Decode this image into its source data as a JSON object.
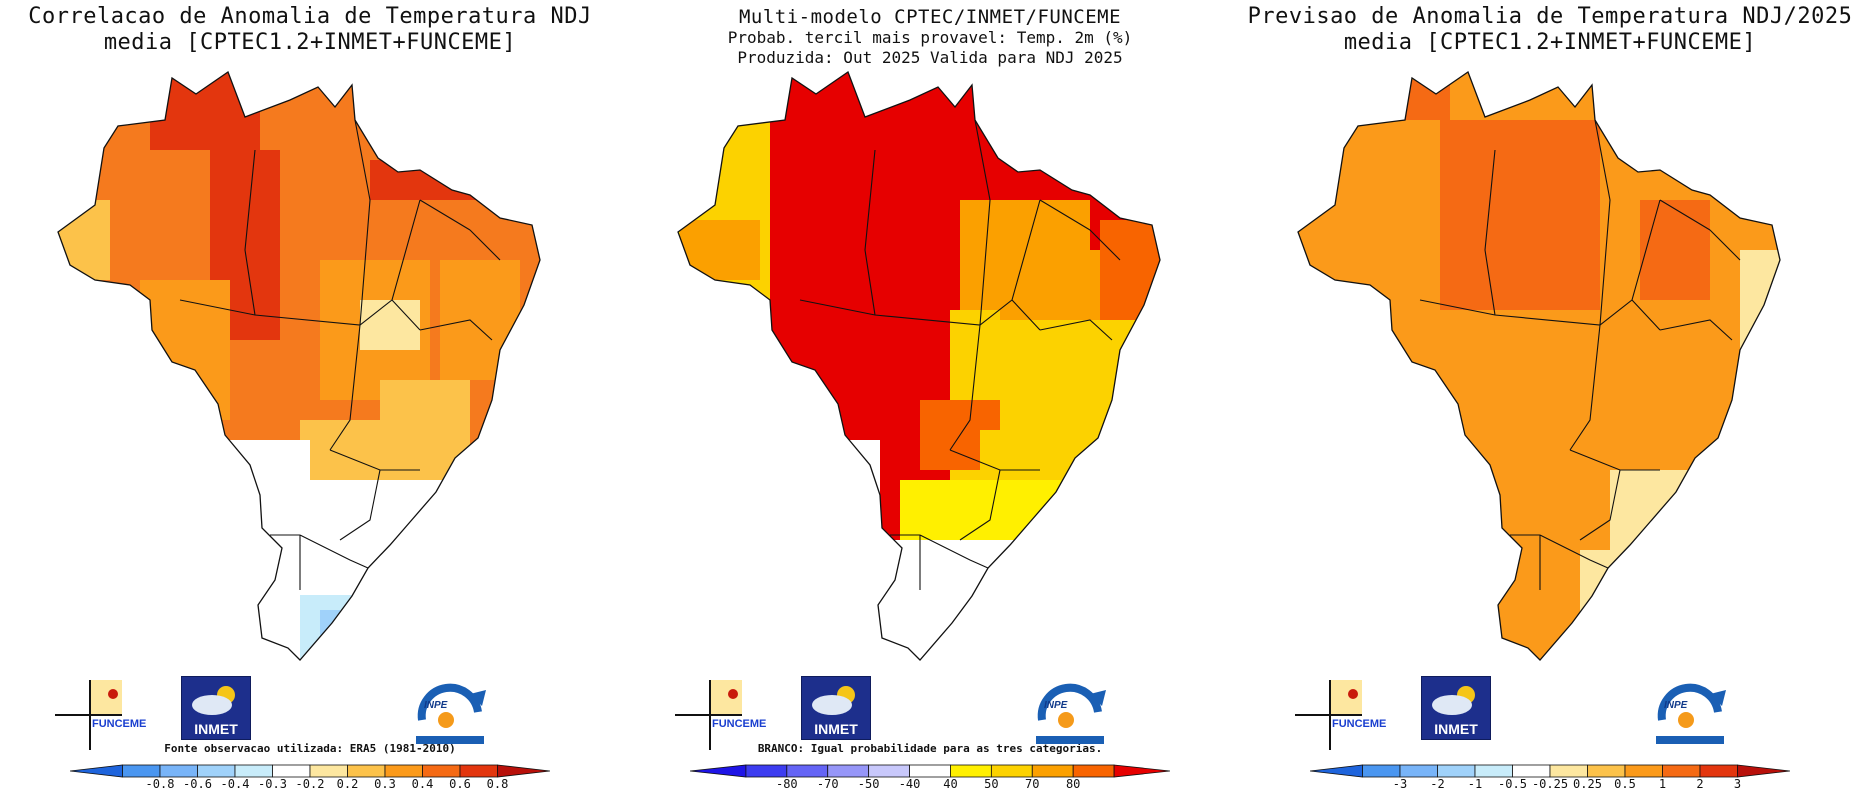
{
  "panels": [
    {
      "id": "correlation",
      "title_lines": [
        "Correlacao de Anomalia de Temperatura NDJ",
        "media [CPTEC1.2+INMET+FUNCEME]"
      ],
      "footnote": "Fonte observacao utilizada: ERA5 (1981-2010)",
      "colorbar": {
        "colors": [
          "#1e64dc",
          "#4a96f0",
          "#78b4f8",
          "#a0d2fa",
          "#c8ecfa",
          "#ffffff",
          "#fde7a0",
          "#fcc24a",
          "#fb9a1a",
          "#f56a14",
          "#e3360e",
          "#b8100a"
        ],
        "ticks": [
          "-0.8",
          "-0.6",
          "-0.4",
          "-0.3",
          "-0.2",
          "0.2",
          "0.3",
          "0.4",
          "0.6",
          "0.8"
        ]
      }
    },
    {
      "id": "probability",
      "title_lines": [
        "Multi-modelo CPTEC/INMET/FUNCEME",
        "Probab. tercil mais provavel: Temp. 2m (%)",
        "Produzida: Out 2025  Valida para NDJ 2025"
      ],
      "footnote": "BRANCO: Igual probabilidade para as tres categorias.",
      "colorbar": {
        "colors": [
          "#1e14e6",
          "#3c3cf0",
          "#6464f5",
          "#9696f8",
          "#c8c8fb",
          "#ffffff",
          "#fff000",
          "#fcd200",
          "#fba000",
          "#f86400",
          "#e60000"
        ],
        "ticks": [
          "-80",
          "-70",
          "-50",
          "-40",
          "40",
          "50",
          "70",
          "80"
        ]
      }
    },
    {
      "id": "forecast",
      "title_lines": [
        "Previsao de Anomalia de Temperatura NDJ/2025",
        "media [CPTEC1.2+INMET+FUNCEME]"
      ],
      "footnote": "",
      "colorbar": {
        "colors": [
          "#1e64dc",
          "#4a96f0",
          "#78b4f8",
          "#a0d2fa",
          "#c8ecfa",
          "#ffffff",
          "#fde7a0",
          "#fcc24a",
          "#fb9a1a",
          "#f56a14",
          "#e3360e",
          "#b8100a"
        ],
        "ticks": [
          "-3",
          "-2",
          "-1",
          "-0.5",
          "-0.25",
          "0.25",
          "0.5",
          "1",
          "2",
          "3"
        ]
      }
    }
  ],
  "logos": {
    "funceme": "FUNCEME",
    "inmet": "INMET",
    "inpe": "INPE"
  }
}
